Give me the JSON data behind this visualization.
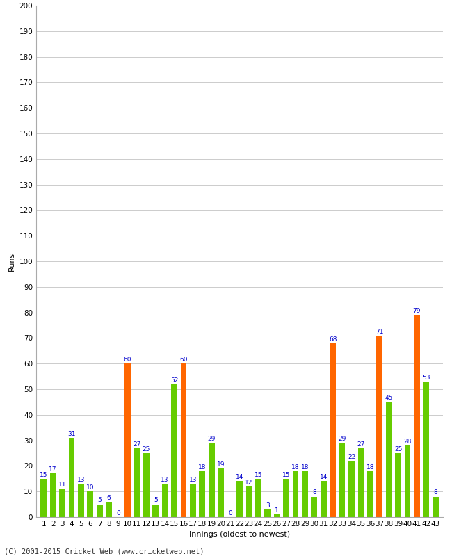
{
  "title": "",
  "xlabel": "Innings (oldest to newest)",
  "ylabel": "Runs",
  "footer": "(C) 2001-2015 Cricket Web (www.cricketweb.net)",
  "ylim": [
    0,
    200
  ],
  "yticks": [
    0,
    10,
    20,
    30,
    40,
    50,
    60,
    70,
    80,
    90,
    100,
    110,
    120,
    130,
    140,
    150,
    160,
    170,
    180,
    190,
    200
  ],
  "bar_data": [
    {
      "inning": 1,
      "value": 15,
      "color": "green"
    },
    {
      "inning": 2,
      "value": 17,
      "color": "green"
    },
    {
      "inning": 3,
      "value": 11,
      "color": "green"
    },
    {
      "inning": 4,
      "value": 31,
      "color": "green"
    },
    {
      "inning": 5,
      "value": 13,
      "color": "green"
    },
    {
      "inning": 6,
      "value": 10,
      "color": "green"
    },
    {
      "inning": 7,
      "value": 5,
      "color": "green"
    },
    {
      "inning": 8,
      "value": 6,
      "color": "green"
    },
    {
      "inning": 9,
      "value": 0,
      "color": "green"
    },
    {
      "inning": 10,
      "value": 60,
      "color": "orange"
    },
    {
      "inning": 11,
      "value": 27,
      "color": "green"
    },
    {
      "inning": 12,
      "value": 25,
      "color": "green"
    },
    {
      "inning": 13,
      "value": 5,
      "color": "green"
    },
    {
      "inning": 14,
      "value": 13,
      "color": "green"
    },
    {
      "inning": 15,
      "value": 52,
      "color": "green"
    },
    {
      "inning": 16,
      "value": 60,
      "color": "orange"
    },
    {
      "inning": 17,
      "value": 13,
      "color": "green"
    },
    {
      "inning": 18,
      "value": 18,
      "color": "green"
    },
    {
      "inning": 19,
      "value": 29,
      "color": "green"
    },
    {
      "inning": 20,
      "value": 19,
      "color": "green"
    },
    {
      "inning": 21,
      "value": 0,
      "color": "green"
    },
    {
      "inning": 22,
      "value": 14,
      "color": "green"
    },
    {
      "inning": 23,
      "value": 12,
      "color": "green"
    },
    {
      "inning": 24,
      "value": 15,
      "color": "green"
    },
    {
      "inning": 25,
      "value": 3,
      "color": "green"
    },
    {
      "inning": 26,
      "value": 1,
      "color": "green"
    },
    {
      "inning": 27,
      "value": 15,
      "color": "green"
    },
    {
      "inning": 28,
      "value": 18,
      "color": "green"
    },
    {
      "inning": 29,
      "value": 18,
      "color": "green"
    },
    {
      "inning": 30,
      "value": 8,
      "color": "green"
    },
    {
      "inning": 31,
      "value": 14,
      "color": "green"
    },
    {
      "inning": 32,
      "value": 68,
      "color": "orange"
    },
    {
      "inning": 33,
      "value": 29,
      "color": "green"
    },
    {
      "inning": 34,
      "value": 22,
      "color": "green"
    },
    {
      "inning": 35,
      "value": 27,
      "color": "green"
    },
    {
      "inning": 36,
      "value": 18,
      "color": "green"
    },
    {
      "inning": 37,
      "value": 71,
      "color": "orange"
    },
    {
      "inning": 38,
      "value": 45,
      "color": "green"
    },
    {
      "inning": 39,
      "value": 25,
      "color": "green"
    },
    {
      "inning": 40,
      "value": 28,
      "color": "green"
    },
    {
      "inning": 41,
      "value": 79,
      "color": "orange"
    },
    {
      "inning": 42,
      "value": 53,
      "color": "green"
    },
    {
      "inning": 43,
      "value": 8,
      "color": "green"
    }
  ],
  "bar_color_green": "#66cc00",
  "bar_color_orange": "#ff6600",
  "label_color": "#0000cc",
  "bg_color": "#ffffff",
  "grid_color": "#cccccc",
  "label_fontsize": 8,
  "tick_fontsize": 7.5,
  "footer_fontsize": 7.5
}
